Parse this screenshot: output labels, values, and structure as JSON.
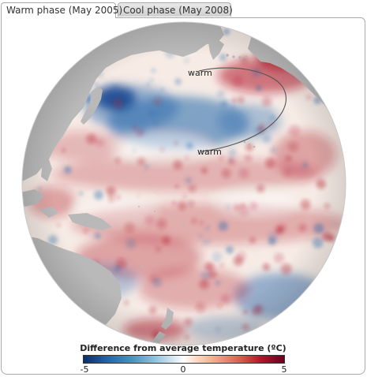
{
  "tabs": [
    {
      "label": "Warm phase (May 2005)",
      "active": true
    },
    {
      "label": "Cool phase (May 2008)",
      "active": false
    }
  ],
  "map": {
    "labels": [
      "warm",
      "warm"
    ],
    "colors": {
      "ocean_base": "#f7ece6",
      "land": "#b9b9b9",
      "warm": "#b2182b",
      "cool": "#2166ac",
      "contour": "#555555"
    }
  },
  "legend": {
    "title": "Difference from average temperature (ºC)",
    "ticks": [
      "-5",
      "0",
      "5"
    ],
    "range": [
      -5,
      5
    ]
  }
}
